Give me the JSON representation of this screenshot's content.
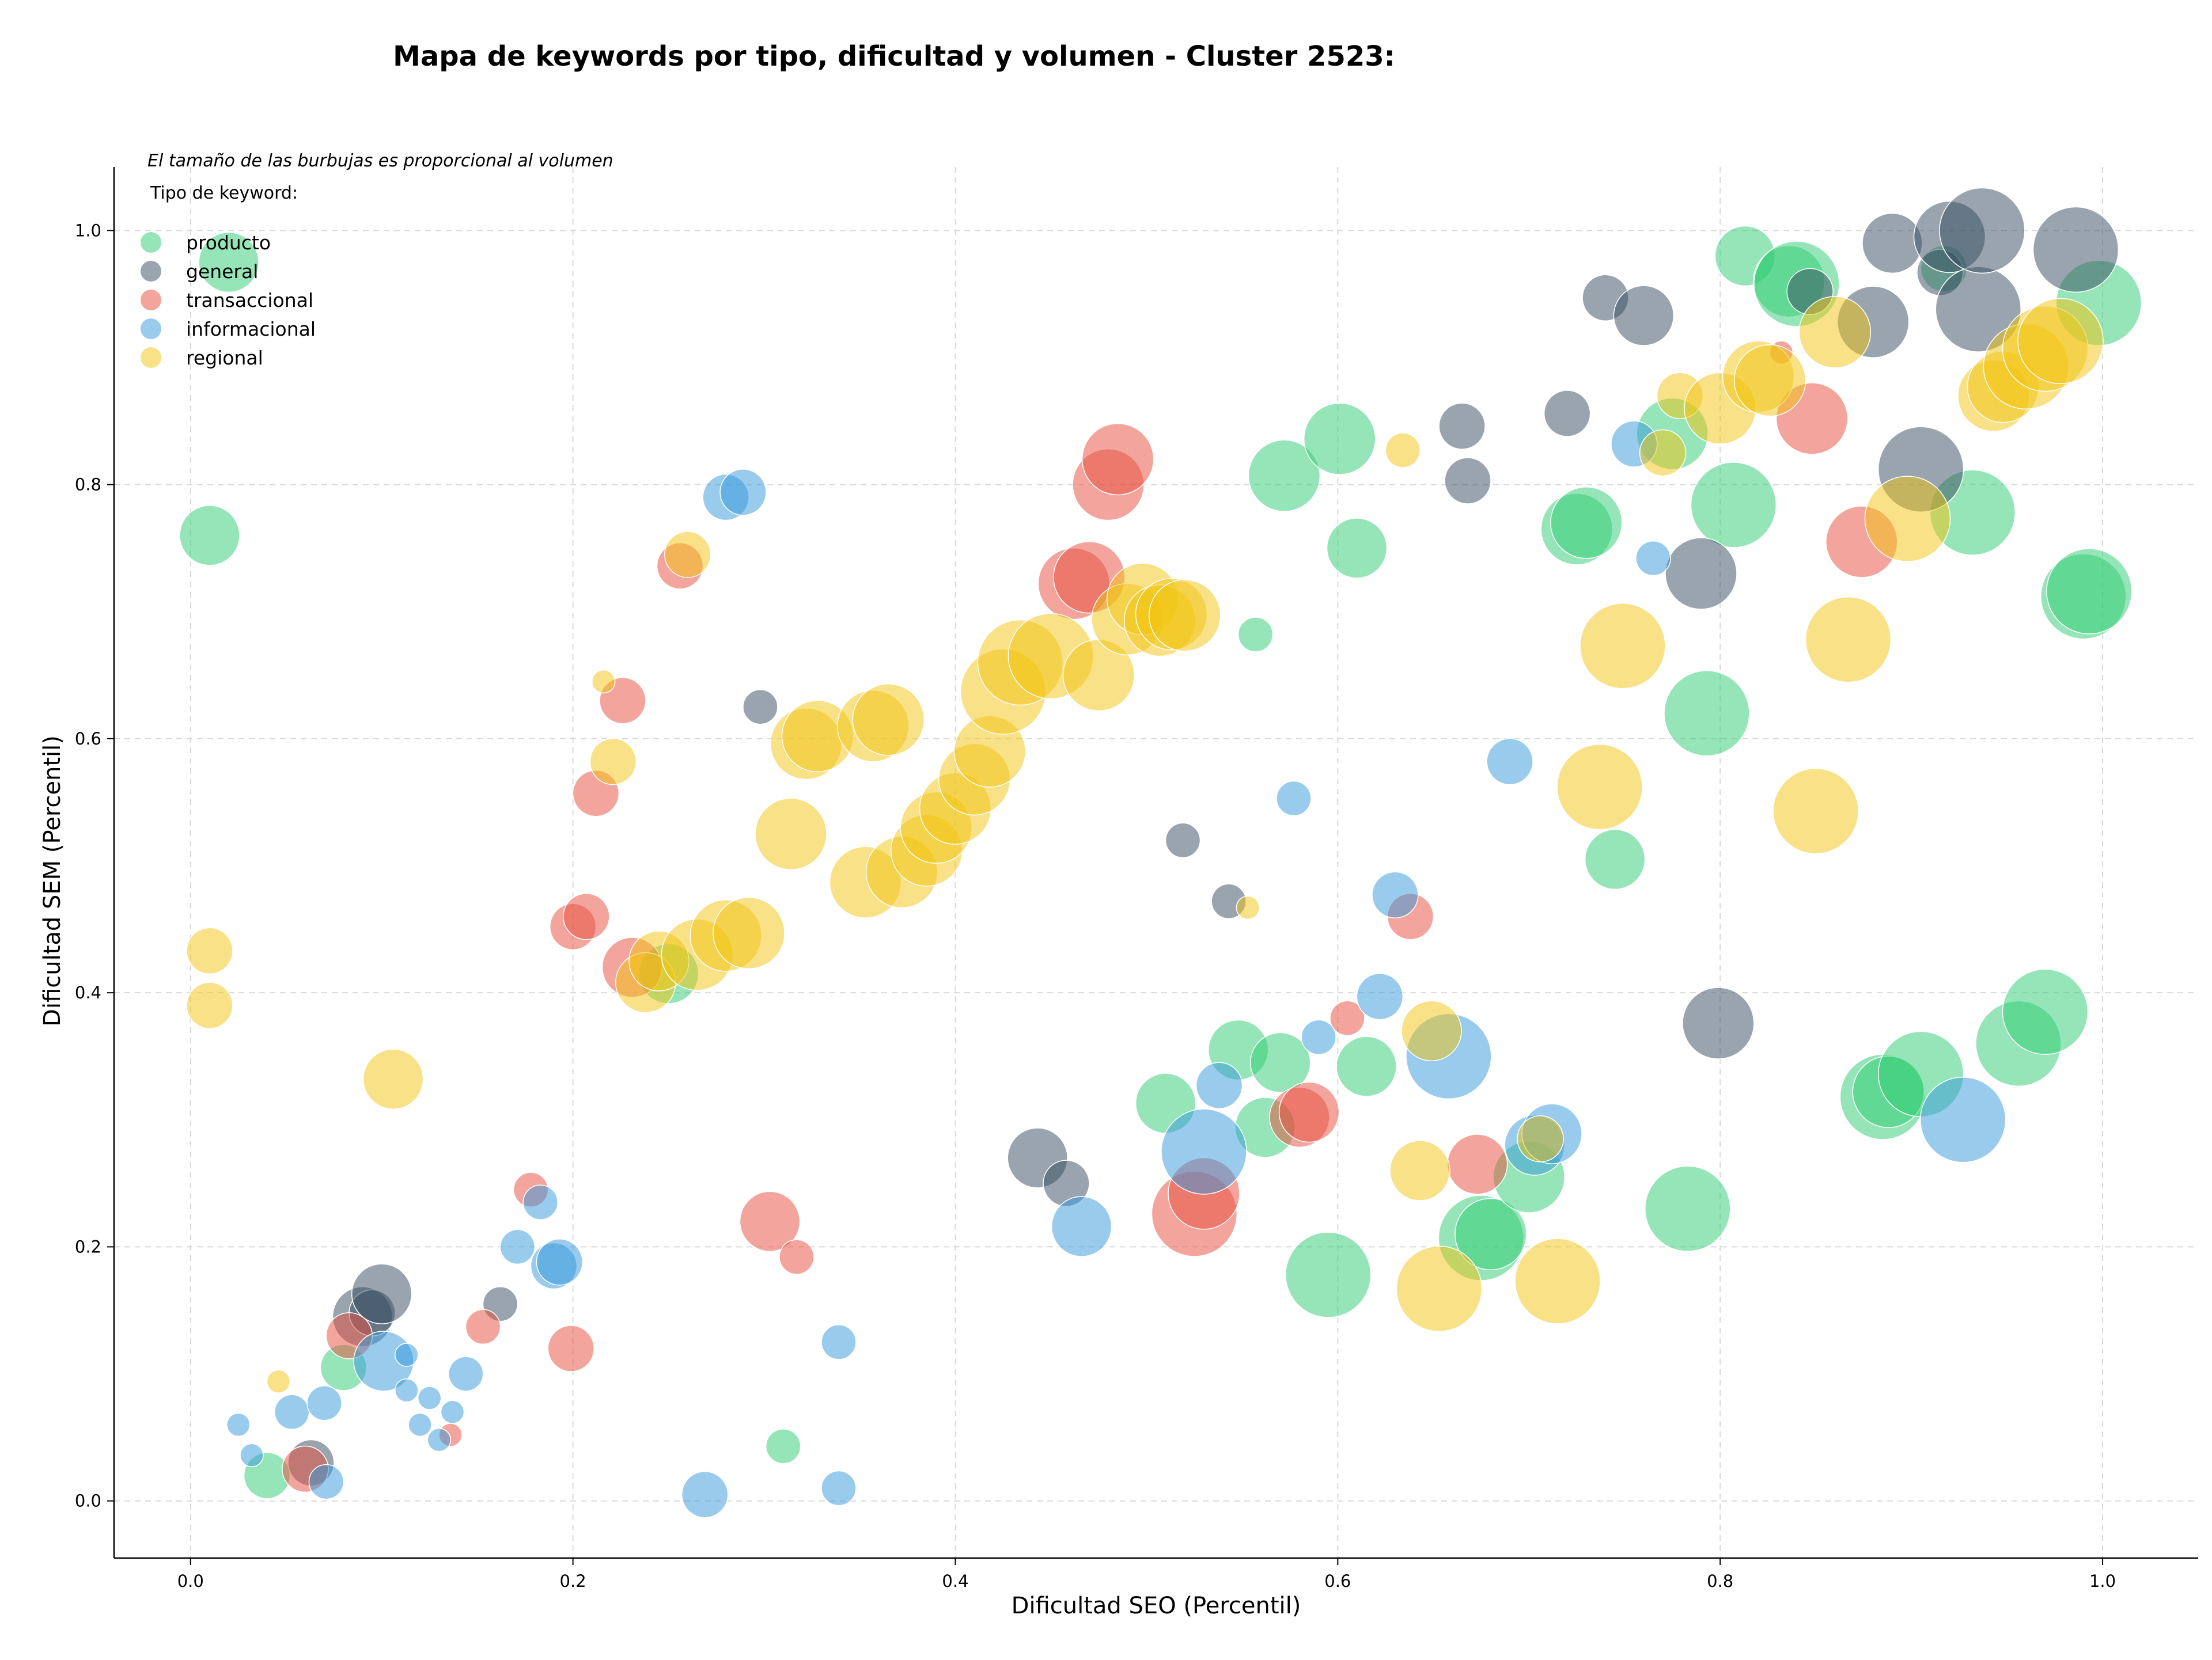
{
  "chart_data": {
    "type": "scatter",
    "title": "Mapa de keywords por tipo, dificultad y volumen - Cluster 2523:",
    "xlabel": "Dificultad SEO (Percentil)",
    "ylabel": "Dificultad SEM (Percentil)",
    "xlim": [
      -0.04,
      1.05
    ],
    "ylim": [
      -0.045,
      1.05
    ],
    "xticks": [
      "0.0",
      "0.2",
      "0.4",
      "0.6",
      "0.8",
      "1.0"
    ],
    "yticks": [
      "0.0",
      "0.2",
      "0.4",
      "0.6",
      "0.8",
      "1.0"
    ],
    "grid": true,
    "note": "El tamaño de las burbujas es proporcional al volumen",
    "legend": {
      "title": "Tipo de keyword:",
      "placement": "top-left",
      "entries": [
        "producto",
        "general",
        "transaccional",
        "informacional",
        "regional"
      ]
    },
    "colors": {
      "producto": "#2ecc71",
      "general": "#34495e",
      "transaccional": "#e74c3c",
      "informacional": "#3498db",
      "regional": "#f1c40f"
    },
    "series": [
      {
        "name": "producto",
        "points": [
          [
            0.01,
            0.76,
            4
          ],
          [
            0.02,
            0.975,
            4
          ],
          [
            0.04,
            0.02,
            3
          ],
          [
            0.08,
            0.105,
            3
          ],
          [
            0.25,
            0.415,
            4
          ],
          [
            0.31,
            0.043,
            2
          ],
          [
            0.51,
            0.313,
            4
          ],
          [
            0.548,
            0.355,
            4
          ],
          [
            0.557,
            0.682,
            2
          ],
          [
            0.562,
            0.294,
            4
          ],
          [
            0.57,
            0.345,
            4
          ],
          [
            0.572,
            0.807,
            5
          ],
          [
            0.595,
            0.178,
            6
          ],
          [
            0.601,
            0.836,
            5
          ],
          [
            0.61,
            0.75,
            4
          ],
          [
            0.615,
            0.342,
            4
          ],
          [
            0.675,
            0.207,
            6
          ],
          [
            0.68,
            0.21,
            5
          ],
          [
            0.7,
            0.255,
            5
          ],
          [
            0.725,
            0.765,
            5
          ],
          [
            0.73,
            0.77,
            5
          ],
          [
            0.745,
            0.505,
            4
          ],
          [
            0.775,
            0.84,
            5
          ],
          [
            0.783,
            0.23,
            6
          ],
          [
            0.793,
            0.62,
            6
          ],
          [
            0.807,
            0.784,
            6
          ],
          [
            0.813,
            0.98,
            4
          ],
          [
            0.836,
            0.96,
            5
          ],
          [
            0.84,
            0.958,
            6
          ],
          [
            0.885,
            0.318,
            6
          ],
          [
            0.888,
            0.322,
            5
          ],
          [
            0.905,
            0.336,
            6
          ],
          [
            0.917,
            0.97,
            3
          ],
          [
            0.932,
            0.778,
            6
          ],
          [
            0.956,
            0.36,
            6
          ],
          [
            0.97,
            0.385,
            6
          ],
          [
            0.99,
            0.712,
            6
          ],
          [
            0.993,
            0.716,
            6
          ],
          [
            0.998,
            0.943,
            6
          ]
        ]
      },
      {
        "name": "general",
        "points": [
          [
            0.063,
            0.03,
            3
          ],
          [
            0.09,
            0.145,
            4
          ],
          [
            0.095,
            0.148,
            3
          ],
          [
            0.1,
            0.163,
            4
          ],
          [
            0.162,
            0.155,
            2
          ],
          [
            0.298,
            0.625,
            2
          ],
          [
            0.443,
            0.27,
            4
          ],
          [
            0.458,
            0.25,
            3
          ],
          [
            0.519,
            0.52,
            2
          ],
          [
            0.543,
            0.472,
            2
          ],
          [
            0.665,
            0.846,
            3
          ],
          [
            0.668,
            0.803,
            3
          ],
          [
            0.72,
            0.856,
            3
          ],
          [
            0.74,
            0.947,
            3
          ],
          [
            0.76,
            0.933,
            4
          ],
          [
            0.79,
            0.73,
            5
          ],
          [
            0.799,
            0.376,
            5
          ],
          [
            0.847,
            0.952,
            3
          ],
          [
            0.88,
            0.928,
            5
          ],
          [
            0.89,
            0.99,
            4
          ],
          [
            0.905,
            0.812,
            6
          ],
          [
            0.915,
            0.967,
            3
          ],
          [
            0.92,
            0.995,
            5
          ],
          [
            0.935,
            0.938,
            6
          ],
          [
            0.937,
            1.0,
            6
          ],
          [
            0.986,
            0.985,
            6
          ]
        ]
      },
      {
        "name": "transaccional",
        "points": [
          [
            0.06,
            0.025,
            3
          ],
          [
            0.083,
            0.13,
            3
          ],
          [
            0.136,
            0.052,
            1
          ],
          [
            0.153,
            0.137,
            2
          ],
          [
            0.178,
            0.245,
            2
          ],
          [
            0.199,
            0.12,
            3
          ],
          [
            0.2,
            0.452,
            3
          ],
          [
            0.207,
            0.46,
            3
          ],
          [
            0.212,
            0.557,
            3
          ],
          [
            0.226,
            0.63,
            3
          ],
          [
            0.231,
            0.42,
            4
          ],
          [
            0.256,
            0.736,
            3
          ],
          [
            0.303,
            0.22,
            4
          ],
          [
            0.317,
            0.192,
            2
          ],
          [
            0.462,
            0.722,
            5
          ],
          [
            0.47,
            0.727,
            5
          ],
          [
            0.48,
            0.8,
            5
          ],
          [
            0.485,
            0.82,
            5
          ],
          [
            0.525,
            0.226,
            6
          ],
          [
            0.53,
            0.242,
            5
          ],
          [
            0.58,
            0.302,
            4
          ],
          [
            0.585,
            0.306,
            4
          ],
          [
            0.605,
            0.38,
            2
          ],
          [
            0.638,
            0.46,
            3
          ],
          [
            0.673,
            0.265,
            4
          ],
          [
            0.832,
            0.904,
            1
          ],
          [
            0.848,
            0.852,
            5
          ],
          [
            0.874,
            0.755,
            5
          ]
        ]
      },
      {
        "name": "informacional",
        "points": [
          [
            0.025,
            0.06,
            1
          ],
          [
            0.032,
            0.036,
            1
          ],
          [
            0.053,
            0.07,
            2
          ],
          [
            0.07,
            0.077,
            2
          ],
          [
            0.071,
            0.015,
            2
          ],
          [
            0.101,
            0.11,
            4
          ],
          [
            0.113,
            0.115,
            1
          ],
          [
            0.113,
            0.087,
            1
          ],
          [
            0.12,
            0.06,
            1
          ],
          [
            0.125,
            0.081,
            1
          ],
          [
            0.13,
            0.048,
            1
          ],
          [
            0.137,
            0.07,
            1
          ],
          [
            0.144,
            0.1,
            2
          ],
          [
            0.171,
            0.2,
            2
          ],
          [
            0.183,
            0.235,
            2
          ],
          [
            0.19,
            0.185,
            3
          ],
          [
            0.193,
            0.188,
            3
          ],
          [
            0.269,
            0.005,
            3
          ],
          [
            0.28,
            0.79,
            3
          ],
          [
            0.289,
            0.794,
            3
          ],
          [
            0.339,
            0.01,
            2
          ],
          [
            0.339,
            0.125,
            2
          ],
          [
            0.466,
            0.216,
            4
          ],
          [
            0.53,
            0.275,
            6
          ],
          [
            0.538,
            0.327,
            3
          ],
          [
            0.577,
            0.553,
            2
          ],
          [
            0.59,
            0.365,
            2
          ],
          [
            0.622,
            0.397,
            3
          ],
          [
            0.63,
            0.477,
            3
          ],
          [
            0.658,
            0.35,
            6
          ],
          [
            0.69,
            0.582,
            3
          ],
          [
            0.703,
            0.28,
            4
          ],
          [
            0.712,
            0.289,
            4
          ],
          [
            0.755,
            0.832,
            3
          ],
          [
            0.765,
            0.742,
            2
          ],
          [
            0.927,
            0.3,
            6
          ]
        ]
      },
      {
        "name": "regional",
        "points": [
          [
            0.01,
            0.433,
            3
          ],
          [
            0.01,
            0.39,
            3
          ],
          [
            0.046,
            0.094,
            1
          ],
          [
            0.106,
            0.332,
            4
          ],
          [
            0.216,
            0.645,
            1
          ],
          [
            0.221,
            0.582,
            3
          ],
          [
            0.238,
            0.408,
            4
          ],
          [
            0.245,
            0.425,
            4
          ],
          [
            0.26,
            0.745,
            3
          ],
          [
            0.265,
            0.43,
            5
          ],
          [
            0.28,
            0.445,
            5
          ],
          [
            0.292,
            0.447,
            5
          ],
          [
            0.314,
            0.525,
            5
          ],
          [
            0.322,
            0.596,
            5
          ],
          [
            0.328,
            0.602,
            5
          ],
          [
            0.353,
            0.487,
            5
          ],
          [
            0.357,
            0.61,
            5
          ],
          [
            0.365,
            0.615,
            5
          ],
          [
            0.372,
            0.495,
            5
          ],
          [
            0.385,
            0.512,
            5
          ],
          [
            0.39,
            0.53,
            5
          ],
          [
            0.4,
            0.545,
            5
          ],
          [
            0.41,
            0.568,
            5
          ],
          [
            0.418,
            0.59,
            5
          ],
          [
            0.425,
            0.637,
            6
          ],
          [
            0.434,
            0.66,
            6
          ],
          [
            0.45,
            0.665,
            6
          ],
          [
            0.475,
            0.65,
            5
          ],
          [
            0.49,
            0.694,
            5
          ],
          [
            0.498,
            0.71,
            5
          ],
          [
            0.507,
            0.693,
            5
          ],
          [
            0.513,
            0.698,
            5
          ],
          [
            0.52,
            0.697,
            5
          ],
          [
            0.553,
            0.467,
            1
          ],
          [
            0.634,
            0.827,
            2
          ],
          [
            0.643,
            0.26,
            4
          ],
          [
            0.649,
            0.37,
            4
          ],
          [
            0.653,
            0.167,
            6
          ],
          [
            0.706,
            0.285,
            3
          ],
          [
            0.715,
            0.173,
            6
          ],
          [
            0.737,
            0.562,
            6
          ],
          [
            0.749,
            0.673,
            6
          ],
          [
            0.77,
            0.825,
            3
          ],
          [
            0.779,
            0.87,
            3
          ],
          [
            0.8,
            0.86,
            5
          ],
          [
            0.82,
            0.885,
            5
          ],
          [
            0.826,
            0.882,
            5
          ],
          [
            0.85,
            0.543,
            6
          ],
          [
            0.86,
            0.92,
            5
          ],
          [
            0.867,
            0.678,
            6
          ],
          [
            0.898,
            0.773,
            6
          ],
          [
            0.943,
            0.87,
            5
          ],
          [
            0.948,
            0.877,
            5
          ],
          [
            0.96,
            0.893,
            6
          ],
          [
            0.97,
            0.907,
            6
          ],
          [
            0.978,
            0.913,
            6
          ]
        ]
      }
    ]
  }
}
